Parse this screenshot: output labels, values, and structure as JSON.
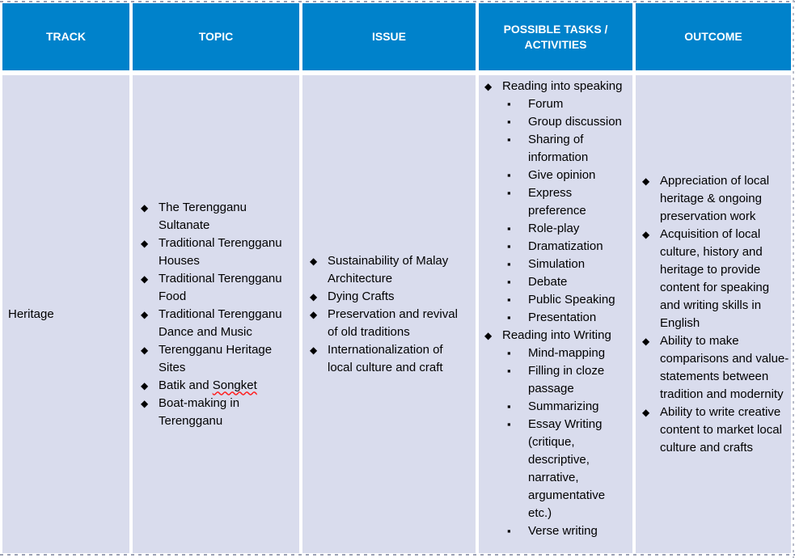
{
  "colors": {
    "header_bg": "#0082CB",
    "header_text": "#FFFFFF",
    "cell_bg": "#D9DCED",
    "body_text": "#000000",
    "spellcheck_underline": "#FF1F1F"
  },
  "icons": {
    "level1_bullet": "◆",
    "level2_bullet": "▪"
  },
  "table": {
    "headers": [
      {
        "label": "TRACK"
      },
      {
        "label": "TOPIC"
      },
      {
        "label": "ISSUE"
      },
      {
        "label": "POSSIBLE TASKS / ACTIVITIES"
      },
      {
        "label": "OUTCOME"
      }
    ],
    "row": {
      "track": "Heritage",
      "topics": [
        {
          "text": "The Terengganu Sultanate"
        },
        {
          "text": "Traditional Terengganu Houses"
        },
        {
          "text": "Traditional Terengganu Food"
        },
        {
          "text": "Traditional Terengganu Dance and Music"
        },
        {
          "text": "Terengganu Heritage Sites"
        },
        {
          "text": "Batik and ",
          "misspelled": "Songket"
        },
        {
          "text": "Boat-making in Terengganu"
        }
      ],
      "issues": [
        {
          "text": "Sustainability of Malay Architecture"
        },
        {
          "text": "Dying Crafts"
        },
        {
          "text": "Preservation and revival of old traditions"
        },
        {
          "text": "Internationalization of local culture and craft"
        }
      ],
      "task_groups": [
        {
          "label": "Reading into speaking",
          "items": [
            "Forum",
            "Group discussion",
            "Sharing of information",
            "Give opinion",
            "Express preference",
            "Role-play",
            "Dramatization",
            "Simulation",
            "Debate",
            "Public Speaking",
            "Presentation"
          ]
        },
        {
          "label": "Reading into Writing",
          "items": [
            "Mind-mapping",
            "Filling in cloze passage",
            "Summarizing",
            "Essay Writing (critique, descriptive, narrative, argumentative etc.)",
            "Verse writing"
          ]
        }
      ],
      "outcomes": [
        {
          "text": "Appreciation of local heritage & ongoing preservation work"
        },
        {
          "text": "Acquisition of local culture, history and heritage to provide content for speaking and writing skills in English"
        },
        {
          "text": "Ability to make comparisons and value-statements between tradition and modernity"
        },
        {
          "text": "Ability to write creative content to market local culture and crafts"
        }
      ]
    }
  }
}
